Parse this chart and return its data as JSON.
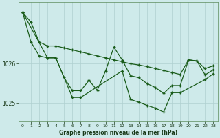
{
  "xlabel": "Graphe pression niveau de la mer (hPa)",
  "background_color": "#ceeaea",
  "grid_color": "#afd0d0",
  "line_color": "#1a5c1a",
  "xlim": [
    -0.5,
    23.5
  ],
  "ylim": [
    1024.55,
    1027.55
  ],
  "yticks": [
    1025,
    1026
  ],
  "xticks": [
    0,
    1,
    2,
    3,
    4,
    5,
    6,
    7,
    8,
    9,
    10,
    11,
    12,
    13,
    14,
    15,
    16,
    17,
    18,
    19,
    20,
    21,
    22,
    23
  ],
  "s1": [
    1027.3,
    1027.05,
    1026.55,
    1026.45,
    1026.45,
    1026.4,
    1026.35,
    1026.3,
    1026.25,
    1026.2,
    1026.15,
    1026.1,
    1026.05,
    1026.0,
    1025.97,
    1025.93,
    1025.88,
    1025.83,
    1025.78,
    1025.73,
    1026.1,
    1026.07,
    1025.88,
    1025.95
  ],
  "s2": [
    1027.3,
    1026.55,
    1026.2,
    1026.15,
    1026.15,
    1025.65,
    1025.32,
    1025.32,
    1025.58,
    1025.33,
    1025.82,
    1026.42,
    1026.1,
    1025.7,
    1025.65,
    1025.5,
    1025.4,
    1025.25,
    1025.45,
    1025.45,
    1026.1,
    1026.07,
    1025.72,
    1025.85
  ],
  "s3_x": [
    0,
    3,
    4,
    6,
    7,
    12,
    13,
    14,
    15,
    16,
    17,
    18,
    19,
    22,
    23
  ],
  "s3_y": [
    1027.3,
    1026.15,
    1026.15,
    1025.15,
    1025.15,
    1025.82,
    1025.1,
    1025.03,
    1024.95,
    1024.88,
    1024.78,
    1025.27,
    1025.27,
    1025.6,
    1025.75
  ]
}
